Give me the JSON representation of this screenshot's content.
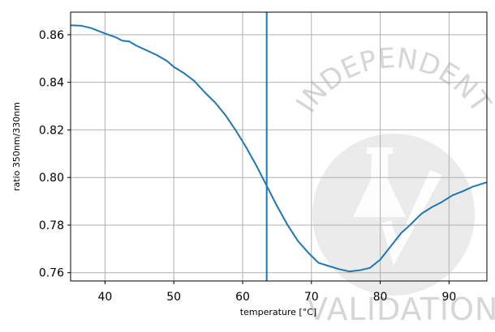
{
  "chart_data": {
    "type": "line",
    "title": "",
    "xlabel": "temperature [°C]",
    "ylabel": "ratio 350nm/330nm",
    "xlim": [
      35,
      95.5
    ],
    "ylim": [
      0.7565,
      0.8695
    ],
    "xticks": [
      40,
      50,
      60,
      70,
      80,
      90
    ],
    "yticks": [
      0.76,
      0.78,
      0.8,
      0.82,
      0.84,
      0.86
    ],
    "grid": true,
    "legend": "none",
    "series": [
      {
        "color": "#1f77b4",
        "x": [
          35,
          36.5,
          38,
          40,
          41.5,
          42.5,
          43.5,
          44.5,
          46,
          47.5,
          49,
          50,
          51.5,
          53,
          54.5,
          56,
          57.5,
          59,
          60.5,
          62,
          63.5,
          65,
          66.5,
          68,
          69.5,
          71,
          72.5,
          74,
          75.5,
          77,
          78.5,
          80,
          81.5,
          83,
          84.5,
          86,
          87.5,
          89,
          90.5,
          92,
          93.5,
          95.5
        ],
        "y": [
          0.864,
          0.8638,
          0.8628,
          0.8605,
          0.859,
          0.8575,
          0.8572,
          0.8555,
          0.8535,
          0.8515,
          0.849,
          0.8465,
          0.8438,
          0.8405,
          0.8358,
          0.8315,
          0.8262,
          0.8198,
          0.8128,
          0.805,
          0.7965,
          0.788,
          0.7802,
          0.7735,
          0.7685,
          0.7642,
          0.7628,
          0.7615,
          0.7605,
          0.761,
          0.762,
          0.7655,
          0.771,
          0.7765,
          0.7805,
          0.7848,
          0.7875,
          0.7898,
          0.7925,
          0.7942,
          0.7962,
          0.798
        ]
      }
    ],
    "vline": {
      "x": 63.5,
      "color": "#1f77b4"
    }
  },
  "watermark": {
    "top_text": "INDEPENDENT",
    "bottom_text": "VALIDATION",
    "icon": "flask-checkmark-icon"
  }
}
